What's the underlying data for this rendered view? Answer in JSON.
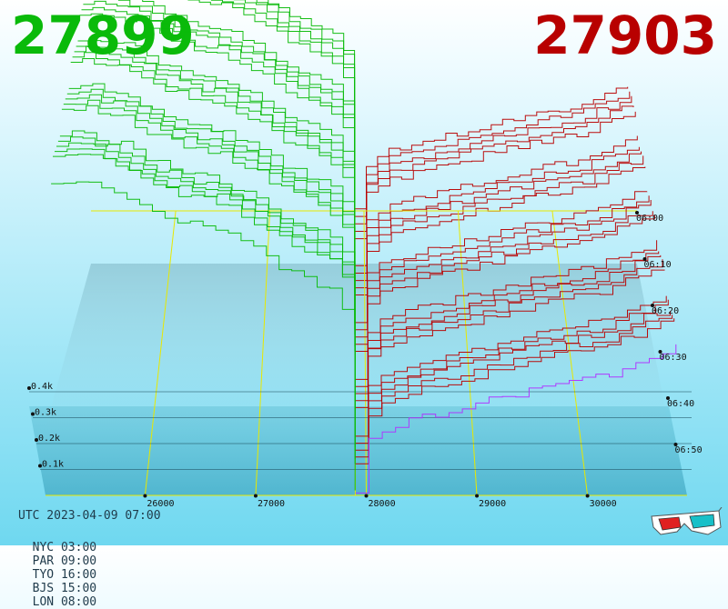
{
  "header": {
    "bid_price": "27899",
    "ask_price": "27903"
  },
  "footer": {
    "utc_label": "UTC 2023-04-09 07:00",
    "timezones": [
      {
        "label": "NYC 03:00"
      },
      {
        "label": "PAR 09:00"
      },
      {
        "label": "TYO 16:00"
      },
      {
        "label": "BJS 15:00"
      },
      {
        "label": "LON 08:00"
      }
    ]
  },
  "colors": {
    "bid": "#0aba0a",
    "ask": "#b80000",
    "latest_ask": "#b030ff",
    "grid": "#e8e800"
  },
  "chart_data": {
    "type": "line",
    "x_ticks": [
      26000,
      27000,
      28000,
      29000,
      30000
    ],
    "x_tick_labels": [
      "26000",
      "27000",
      "28000",
      "29000",
      "30000"
    ],
    "xlim": [
      25100,
      30900
    ],
    "y_ticks": [
      100,
      200,
      300,
      400
    ],
    "y_tick_labels": [
      "0.1k",
      "0.2k",
      "0.3k",
      "0.4k"
    ],
    "ylim": [
      0,
      500
    ],
    "time_ticks": [
      "06:00",
      "06:10",
      "06:20",
      "06:30",
      "06:40",
      "06:50"
    ],
    "snapshots_per_tick": 4,
    "mid_price": 27901,
    "bid_curve": {
      "prices": [
        25150,
        25400,
        25700,
        26000,
        26300,
        26600,
        26900,
        27200,
        27500,
        27700,
        27800,
        27860,
        27899
      ],
      "volumes": [
        435,
        432,
        420,
        395,
        380,
        370,
        350,
        320,
        300,
        285,
        262,
        230,
        15
      ]
    },
    "ask_curve": {
      "prices": [
        27903,
        27940,
        28000,
        28100,
        28300,
        28600,
        29000,
        29400,
        29800,
        30200,
        30500,
        30800
      ],
      "volumes": [
        20,
        55,
        80,
        96,
        108,
        120,
        135,
        150,
        165,
        175,
        195,
        210
      ]
    }
  }
}
